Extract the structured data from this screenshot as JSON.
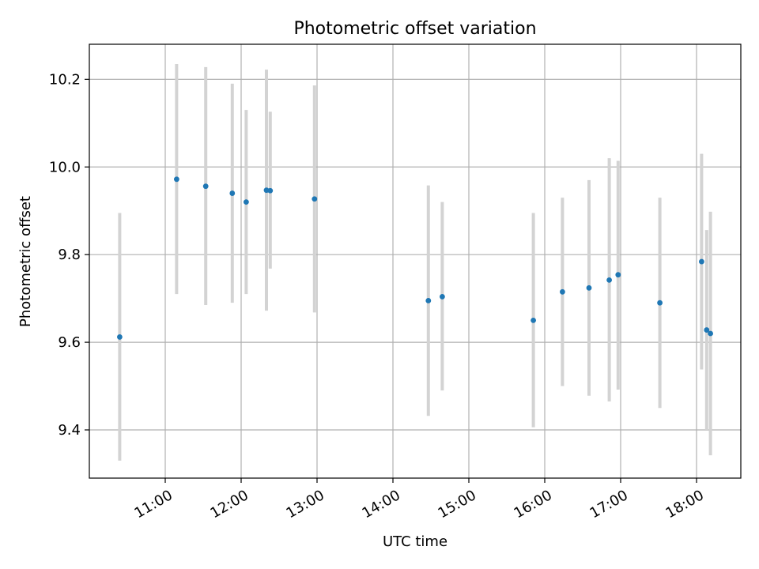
{
  "chart_data": {
    "type": "scatter",
    "title": "Photometric offset variation",
    "xlabel": "UTC time",
    "ylabel": "Photometric offset",
    "x_ticks": [
      "11:00",
      "12:00",
      "13:00",
      "14:00",
      "15:00",
      "16:00",
      "17:00",
      "18:00"
    ],
    "y_ticks": [
      "9.4",
      "9.6",
      "9.8",
      "10.0",
      "10.2"
    ],
    "xlim": [
      "10:00",
      "18:35"
    ],
    "ylim": [
      9.29,
      10.28
    ],
    "grid": true,
    "marker_color": "#1f77b4",
    "errorbar_color": "#d3d3d3",
    "series": [
      {
        "points": [
          {
            "time": "10:24",
            "y": 9.612,
            "ylow": 9.33,
            "yhigh": 9.895
          },
          {
            "time": "11:09",
            "y": 9.972,
            "ylow": 9.71,
            "yhigh": 10.235
          },
          {
            "time": "11:32",
            "y": 9.956,
            "ylow": 9.685,
            "yhigh": 10.228
          },
          {
            "time": "11:53",
            "y": 9.94,
            "ylow": 9.69,
            "yhigh": 10.19
          },
          {
            "time": "12:04",
            "y": 9.92,
            "ylow": 9.71,
            "yhigh": 10.13
          },
          {
            "time": "12:20",
            "y": 9.947,
            "ylow": 9.672,
            "yhigh": 10.222
          },
          {
            "time": "12:23",
            "y": 9.946,
            "ylow": 9.768,
            "yhigh": 10.126
          },
          {
            "time": "12:58",
            "y": 9.927,
            "ylow": 9.668,
            "yhigh": 10.186
          },
          {
            "time": "14:28",
            "y": 9.695,
            "ylow": 9.432,
            "yhigh": 9.958
          },
          {
            "time": "14:39",
            "y": 9.704,
            "ylow": 9.49,
            "yhigh": 9.92
          },
          {
            "time": "15:51",
            "y": 9.65,
            "ylow": 9.406,
            "yhigh": 9.895
          },
          {
            "time": "16:14",
            "y": 9.715,
            "ylow": 9.5,
            "yhigh": 9.93
          },
          {
            "time": "16:35",
            "y": 9.724,
            "ylow": 9.478,
            "yhigh": 9.97
          },
          {
            "time": "16:51",
            "y": 9.742,
            "ylow": 9.465,
            "yhigh": 10.02
          },
          {
            "time": "16:58",
            "y": 9.754,
            "ylow": 9.492,
            "yhigh": 10.014
          },
          {
            "time": "17:31",
            "y": 9.69,
            "ylow": 9.45,
            "yhigh": 9.93
          },
          {
            "time": "18:04",
            "y": 9.784,
            "ylow": 9.538,
            "yhigh": 10.03
          },
          {
            "time": "18:08",
            "y": 9.628,
            "ylow": 9.4,
            "yhigh": 9.856
          },
          {
            "time": "18:11",
            "y": 9.62,
            "ylow": 9.342,
            "yhigh": 9.898
          }
        ]
      }
    ]
  }
}
